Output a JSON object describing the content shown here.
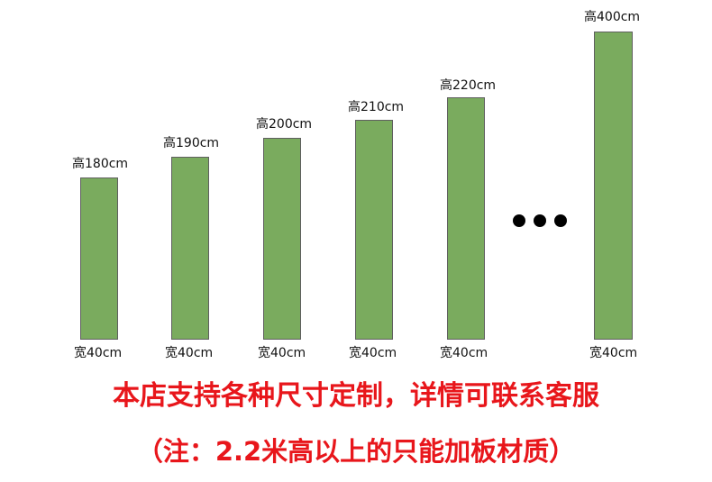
{
  "panels": [
    {
      "height_label": "高180cm",
      "width_label": "宽40cm",
      "height_cm": 180
    },
    {
      "height_label": "高190cm",
      "width_label": "宽40cm",
      "height_cm": 190
    },
    {
      "height_label": "高200cm",
      "width_label": "宽40cm",
      "height_cm": 200
    },
    {
      "height_label": "高210cm",
      "width_label": "宽40cm",
      "height_cm": 210
    },
    {
      "height_label": "高220cm",
      "width_label": "宽40cm",
      "height_cm": 220
    },
    {
      "height_label": "高400cm",
      "width_label": "宽40cm",
      "height_cm": 400
    }
  ],
  "ellipsis_icon": "ellipsis-icon",
  "notice": {
    "line1": "本店支持各种尺寸定制，详情可联系客服",
    "line2": "（注：2.2米高以上的只能加板材质）"
  },
  "colors": {
    "panel": "#7aab5e",
    "notice": "#e8161b"
  }
}
